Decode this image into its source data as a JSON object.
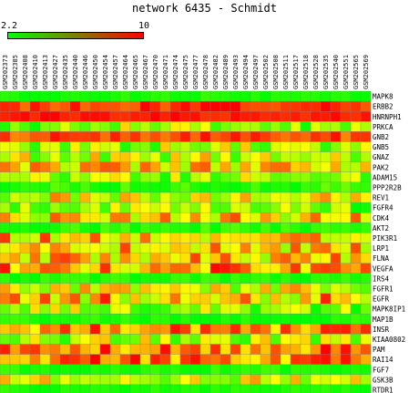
{
  "title": "network 6435 - Schmidt",
  "scale": {
    "min_label": "2.2",
    "max_label": "10",
    "low_color": "#00ff00",
    "high_color": "#ff0000"
  },
  "chart_data": {
    "type": "heatmap",
    "title": "network 6435 - Schmidt",
    "vmin": 2.2,
    "vmax": 10,
    "columns": [
      "GSM202373",
      "GSM202385",
      "GSM202408",
      "GSM202410",
      "GSM202413",
      "GSM202427",
      "GSM202435",
      "GSM202440",
      "GSM202446",
      "GSM202450",
      "GSM202454",
      "GSM202457",
      "GSM202464",
      "GSM202465",
      "GSM202467",
      "GSM202470",
      "GSM202471",
      "GSM202474",
      "GSM202475",
      "GSM202477",
      "GSM202478",
      "GSM202482",
      "GSM202489",
      "GSM202493",
      "GSM202494",
      "GSM202497",
      "GSM202502",
      "GSM202508",
      "GSM202511",
      "GSM202517",
      "GSM202518",
      "GSM202528",
      "GSM202535",
      "GSM202540",
      "GSM202551",
      "GSM202565",
      "GSM202569"
    ],
    "rows": [
      "MAPK8",
      "ERBB2",
      "HNRNPH1",
      "PRKCA",
      "GNB2",
      "GNB5",
      "GNAZ",
      "PAK2",
      "ADAM15",
      "PPP2R2B",
      "REV1",
      "FGFR4",
      "CDK4",
      "AKT2",
      "PIK3R1",
      "LRP1",
      "FLNA",
      "VEGFA",
      "IRS4",
      "FGFR1",
      "EGFR",
      "MAPK8IP1",
      "MAP1B",
      "INSR",
      "KIAA0802",
      "PAM",
      "RAI14",
      "FGF7",
      "GSK3B",
      "RTDR1"
    ],
    "row_levels": [
      0.05,
      0.9,
      0.95,
      0.3,
      0.85,
      0.35,
      0.4,
      0.55,
      0.3,
      0.1,
      0.45,
      0.25,
      0.55,
      0.08,
      0.6,
      0.6,
      0.55,
      0.7,
      0.05,
      0.45,
      0.6,
      0.3,
      0.05,
      0.72,
      0.35,
      0.78,
      0.75,
      0.05,
      0.4,
      0.05
    ],
    "row_noise": [
      0.05,
      0.12,
      0.05,
      0.3,
      0.12,
      0.3,
      0.3,
      0.3,
      0.3,
      0.12,
      0.3,
      0.3,
      0.3,
      0.1,
      0.3,
      0.3,
      0.35,
      0.3,
      0.08,
      0.3,
      0.35,
      0.3,
      0.08,
      0.25,
      0.3,
      0.25,
      0.25,
      0.08,
      0.3,
      0.05
    ]
  }
}
